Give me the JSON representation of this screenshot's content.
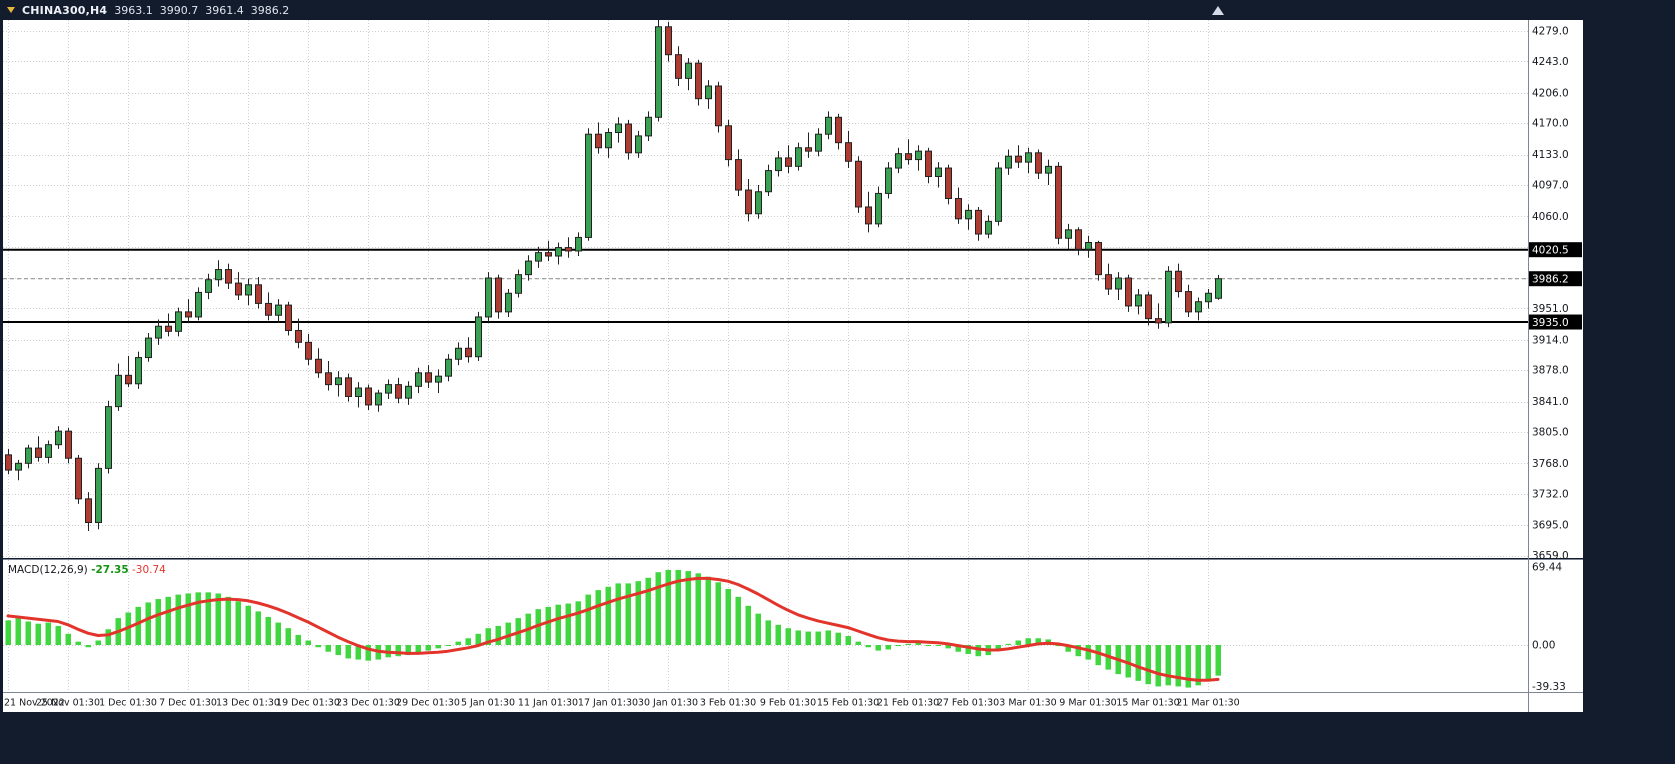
{
  "title_bar": {
    "symbol": "CHINA300,H4",
    "open": "3963.1",
    "high": "3990.7",
    "low": "3961.4",
    "close": "3986.2"
  },
  "colors": {
    "frame": "#131c2d",
    "pane_bg": "#ffffff",
    "grid": "#cdcdcd",
    "wick": "#222222",
    "bull": "#3aa154",
    "bear": "#ae3c32",
    "hline": "#000000",
    "macd_bar": "#3fd63f",
    "macd_signal": "#e3342c",
    "macd_value": "#149414",
    "badge_bg": "#000000",
    "badge_text": "#ffffff"
  },
  "chart_data": {
    "type": "candlestick",
    "symbol": "CHINA300",
    "timeframe": "H4",
    "current_price": 3986.2,
    "hlines": [
      4020.5,
      3935.0
    ],
    "price_axis": {
      "labels": [
        4279.0,
        4243.0,
        4206.0,
        4170.0,
        4133.0,
        4097.0,
        4060.0,
        3951.0,
        3914.0,
        3878.0,
        3841.0,
        3805.0,
        3768.0,
        3732.0,
        3695.0,
        3659.0
      ],
      "hidden_gridlines": [
        4024.0,
        3987.5
      ],
      "min": 3659.0,
      "max": 4279.0
    },
    "x_axis": {
      "label_every": 6,
      "labels": [
        "21 Nov 2022",
        "25 Nov 01:30",
        "1 Dec 01:30",
        "7 Dec 01:30",
        "13 Dec 01:30",
        "19 Dec 01:30",
        "23 Dec 01:30",
        "29 Dec 01:30",
        "5 Jan 01:30",
        "11 Jan 01:30",
        "17 Jan 01:30",
        "30 Jan 01:30",
        "3 Feb 01:30",
        "9 Feb 01:30",
        "15 Feb 01:30",
        "21 Feb 01:30",
        "27 Feb 01:30",
        "3 Mar 01:30",
        "9 Mar 01:30",
        "15 Mar 01:30",
        "21 Mar 01:30"
      ]
    },
    "candles": [
      [
        3778,
        3785,
        3755,
        3760
      ],
      [
        3760,
        3772,
        3748,
        3768
      ],
      [
        3768,
        3790,
        3762,
        3786
      ],
      [
        3786,
        3800,
        3770,
        3775
      ],
      [
        3775,
        3795,
        3768,
        3790
      ],
      [
        3790,
        3812,
        3785,
        3806
      ],
      [
        3806,
        3810,
        3768,
        3774
      ],
      [
        3774,
        3778,
        3720,
        3726
      ],
      [
        3726,
        3734,
        3688,
        3698
      ],
      [
        3698,
        3768,
        3690,
        3762
      ],
      [
        3762,
        3842,
        3756,
        3835
      ],
      [
        3835,
        3886,
        3830,
        3872
      ],
      [
        3872,
        3895,
        3858,
        3862
      ],
      [
        3862,
        3900,
        3856,
        3893
      ],
      [
        3893,
        3922,
        3888,
        3916
      ],
      [
        3916,
        3938,
        3908,
        3930
      ],
      [
        3930,
        3945,
        3918,
        3924
      ],
      [
        3924,
        3952,
        3918,
        3947
      ],
      [
        3947,
        3962,
        3934,
        3941
      ],
      [
        3941,
        3976,
        3937,
        3970
      ],
      [
        3970,
        3992,
        3962,
        3985
      ],
      [
        3985,
        4008,
        3977,
        3997
      ],
      [
        3997,
        4004,
        3974,
        3981
      ],
      [
        3981,
        3994,
        3961,
        3967
      ],
      [
        3967,
        3986,
        3955,
        3979
      ],
      [
        3979,
        3988,
        3951,
        3957
      ],
      [
        3957,
        3970,
        3937,
        3943
      ],
      [
        3943,
        3962,
        3934,
        3955
      ],
      [
        3955,
        3959,
        3919,
        3925
      ],
      [
        3925,
        3939,
        3904,
        3911
      ],
      [
        3911,
        3921,
        3884,
        3891
      ],
      [
        3891,
        3904,
        3869,
        3875
      ],
      [
        3875,
        3889,
        3854,
        3861
      ],
      [
        3861,
        3877,
        3847,
        3869
      ],
      [
        3869,
        3874,
        3841,
        3847
      ],
      [
        3847,
        3864,
        3834,
        3857
      ],
      [
        3857,
        3861,
        3831,
        3837
      ],
      [
        3837,
        3855,
        3829,
        3851
      ],
      [
        3851,
        3867,
        3844,
        3861
      ],
      [
        3861,
        3869,
        3839,
        3845
      ],
      [
        3845,
        3865,
        3837,
        3859
      ],
      [
        3859,
        3881,
        3851,
        3875
      ],
      [
        3875,
        3884,
        3857,
        3864
      ],
      [
        3864,
        3879,
        3851,
        3871
      ],
      [
        3871,
        3897,
        3865,
        3891
      ],
      [
        3891,
        3911,
        3884,
        3904
      ],
      [
        3904,
        3917,
        3887,
        3894
      ],
      [
        3894,
        3947,
        3889,
        3941
      ],
      [
        3941,
        3994,
        3935,
        3987
      ],
      [
        3987,
        3991,
        3939,
        3947
      ],
      [
        3947,
        3974,
        3941,
        3969
      ],
      [
        3969,
        3997,
        3964,
        3991
      ],
      [
        3991,
        4014,
        3984,
        4007
      ],
      [
        4007,
        4024,
        3999,
        4017
      ],
      [
        4017,
        4031,
        4007,
        4013
      ],
      [
        4013,
        4029,
        4003,
        4023
      ],
      [
        4023,
        4035,
        4011,
        4019
      ],
      [
        4019,
        4041,
        4013,
        4035
      ],
      [
        4035,
        4164,
        4031,
        4157
      ],
      [
        4157,
        4171,
        4134,
        4141
      ],
      [
        4141,
        4164,
        4129,
        4159
      ],
      [
        4159,
        4177,
        4147,
        4169
      ],
      [
        4169,
        4174,
        4127,
        4135
      ],
      [
        4135,
        4161,
        4129,
        4155
      ],
      [
        4155,
        4184,
        4149,
        4177
      ],
      [
        4177,
        4293,
        4172,
        4284
      ],
      [
        4284,
        4290,
        4243,
        4251
      ],
      [
        4251,
        4261,
        4214,
        4223
      ],
      [
        4223,
        4247,
        4209,
        4241
      ],
      [
        4241,
        4245,
        4191,
        4199
      ],
      [
        4199,
        4221,
        4187,
        4214
      ],
      [
        4214,
        4219,
        4159,
        4167
      ],
      [
        4167,
        4174,
        4119,
        4127
      ],
      [
        4127,
        4139,
        4084,
        4091
      ],
      [
        4091,
        4104,
        4054,
        4063
      ],
      [
        4063,
        4097,
        4057,
        4089
      ],
      [
        4089,
        4121,
        4084,
        4114
      ],
      [
        4114,
        4137,
        4107,
        4129
      ],
      [
        4129,
        4144,
        4111,
        4119
      ],
      [
        4119,
        4147,
        4114,
        4141
      ],
      [
        4141,
        4159,
        4129,
        4137
      ],
      [
        4137,
        4164,
        4131,
        4157
      ],
      [
        4157,
        4184,
        4151,
        4177
      ],
      [
        4177,
        4181,
        4139,
        4147
      ],
      [
        4147,
        4161,
        4117,
        4125
      ],
      [
        4125,
        4131,
        4064,
        4071
      ],
      [
        4071,
        4089,
        4041,
        4051
      ],
      [
        4051,
        4095,
        4047,
        4087
      ],
      [
        4087,
        4124,
        4081,
        4117
      ],
      [
        4117,
        4141,
        4111,
        4134
      ],
      [
        4134,
        4151,
        4121,
        4127
      ],
      [
        4127,
        4144,
        4114,
        4137
      ],
      [
        4137,
        4141,
        4099,
        4107
      ],
      [
        4107,
        4124,
        4094,
        4117
      ],
      [
        4117,
        4121,
        4074,
        4081
      ],
      [
        4081,
        4094,
        4051,
        4057
      ],
      [
        4057,
        4074,
        4044,
        4067
      ],
      [
        4067,
        4071,
        4031,
        4039
      ],
      [
        4039,
        4061,
        4034,
        4054
      ],
      [
        4054,
        4124,
        4049,
        4117
      ],
      [
        4117,
        4139,
        4109,
        4131
      ],
      [
        4131,
        4144,
        4117,
        4124
      ],
      [
        4124,
        4141,
        4111,
        4135
      ],
      [
        4135,
        4139,
        4104,
        4111
      ],
      [
        4111,
        4127,
        4097,
        4119
      ],
      [
        4119,
        4124,
        4027,
        4034
      ],
      [
        4034,
        4051,
        4021,
        4044
      ],
      [
        4044,
        4047,
        4014,
        4021
      ],
      [
        4021,
        4037,
        4011,
        4029
      ],
      [
        4029,
        4031,
        3984,
        3991
      ],
      [
        3991,
        4004,
        3967,
        3974
      ],
      [
        3974,
        3994,
        3961,
        3987
      ],
      [
        3987,
        3991,
        3947,
        3954
      ],
      [
        3954,
        3974,
        3944,
        3967
      ],
      [
        3967,
        3971,
        3931,
        3939
      ],
      [
        3939,
        3957,
        3927,
        3934
      ],
      [
        3934,
        4001,
        3929,
        3995
      ],
      [
        3995,
        4004,
        3964,
        3971
      ],
      [
        3971,
        3979,
        3941,
        3947
      ],
      [
        3947,
        3964,
        3937,
        3959
      ],
      [
        3959,
        3974,
        3951,
        3969
      ],
      [
        3963.1,
        3990.7,
        3961.4,
        3986.2
      ]
    ],
    "macd": {
      "label": "MACD(12,26,9)",
      "main_value": "-27.35",
      "signal_value": "-30.74",
      "axis_labels": [
        69.44,
        0,
        -39.33
      ],
      "histogram": [
        22,
        24,
        21,
        19,
        20,
        17,
        10,
        3,
        -2,
        4,
        14,
        24,
        29,
        34,
        38,
        41,
        43,
        45,
        46,
        47,
        47,
        46,
        43,
        39,
        35,
        30,
        25,
        20,
        15,
        9,
        4,
        -2,
        -6,
        -9,
        -12,
        -13,
        -14,
        -13,
        -11,
        -10,
        -9,
        -7,
        -5,
        -3,
        0,
        3,
        6,
        10,
        15,
        17,
        20,
        24,
        28,
        32,
        34,
        36,
        37,
        39,
        45,
        49,
        52,
        55,
        55,
        57,
        60,
        65,
        67,
        67,
        66,
        64,
        61,
        56,
        50,
        43,
        35,
        28,
        22,
        18,
        15,
        13,
        12,
        12,
        13,
        11,
        8,
        3,
        -2,
        -5,
        -4,
        -1,
        1,
        2,
        0,
        0,
        -3,
        -6,
        -8,
        -10,
        -9,
        -4,
        1,
        4,
        6,
        6,
        5,
        -1,
        -6,
        -10,
        -13,
        -18,
        -22,
        -26,
        -29,
        -32,
        -35,
        -37,
        -36,
        -37,
        -38,
        -36,
        -32,
        -27.35
      ],
      "signal": [
        26,
        25,
        24,
        23,
        22,
        21,
        18,
        14,
        10.5,
        8.5,
        9,
        12,
        15.5,
        19.5,
        23.5,
        27,
        30,
        33,
        35.5,
        38,
        39.5,
        40.5,
        41,
        40.5,
        39.5,
        37.5,
        35,
        32,
        28.5,
        24.5,
        20.5,
        16,
        11.5,
        7,
        3,
        -0.5,
        -3.5,
        -5.5,
        -6.5,
        -7,
        -7.5,
        -7.5,
        -7,
        -6.5,
        -5.5,
        -4,
        -2.5,
        -0.5,
        2.5,
        5,
        8,
        11,
        14,
        17.5,
        20.5,
        23.5,
        26,
        28.5,
        31.5,
        35,
        38,
        41,
        43.5,
        46,
        48.5,
        51.5,
        54.5,
        57,
        58.5,
        59.5,
        59.5,
        58.5,
        57,
        54,
        50,
        45.5,
        40.5,
        35.5,
        31,
        27,
        24,
        21.5,
        19.5,
        17.5,
        15.5,
        12.5,
        9.5,
        6.5,
        4.5,
        3.5,
        3,
        3,
        2.5,
        2,
        1,
        -0.5,
        -2,
        -3.5,
        -4.5,
        -4.5,
        -3.5,
        -2,
        -0.5,
        1,
        1.5,
        1,
        -0.5,
        -2.5,
        -4.5,
        -7,
        -10,
        -13,
        -16,
        -19.5,
        -22.5,
        -25.5,
        -27.5,
        -29,
        -30.5,
        -31.5,
        -31.5,
        -30.74
      ]
    }
  }
}
